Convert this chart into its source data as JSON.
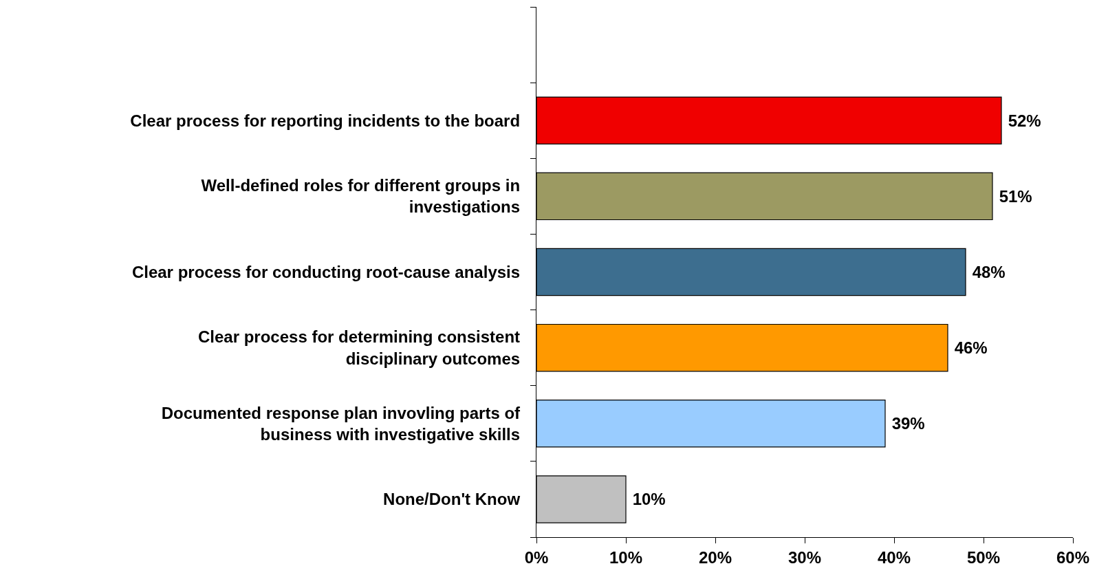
{
  "chart_data": {
    "type": "bar",
    "orientation": "horizontal",
    "categories": [
      null,
      "Clear process for reporting incidents to the board",
      "Well-defined roles for different groups in investigations",
      "Clear process for conducting root-cause analysis",
      "Clear process for determining consistent disciplinary outcomes",
      "Documented response plan invovling parts of business with investigative skills",
      "None/Don't Know"
    ],
    "values": [
      null,
      52,
      51,
      48,
      46,
      39,
      10
    ],
    "colors": [
      "#ffffff",
      "#f00000",
      "#9c9a62",
      "#3d6e8f",
      "#ff9900",
      "#99ccff",
      "#c0c0c0"
    ],
    "value_labels": [
      null,
      "52%",
      "51%",
      "48%",
      "46%",
      "39%",
      "10%"
    ],
    "xlim": [
      0,
      60
    ],
    "xticks": [
      {
        "value": 0,
        "label": "0%"
      },
      {
        "value": 10,
        "label": "10%"
      },
      {
        "value": 20,
        "label": "20%"
      },
      {
        "value": 30,
        "label": "30%"
      },
      {
        "value": 40,
        "label": "40%"
      },
      {
        "value": 50,
        "label": "50%"
      },
      {
        "value": 60,
        "label": "60%"
      }
    ],
    "legend": false
  }
}
